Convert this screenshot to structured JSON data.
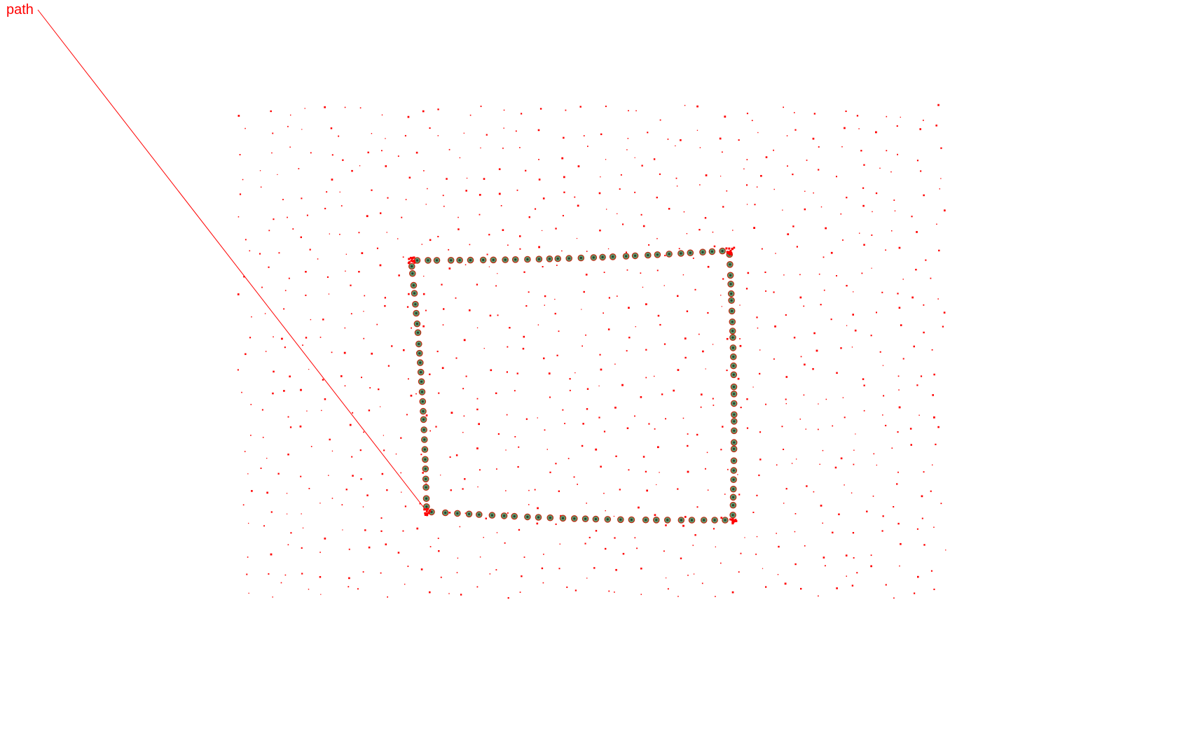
{
  "label": {
    "text": "path"
  },
  "colors": {
    "background": "#ffffff",
    "path_line": "#ff0000",
    "scatter_point": "#ff0000",
    "marker_ring": "#c02a10",
    "marker_fill": "#5a9b6e",
    "marker_dot": "#2c3a2e"
  },
  "scene": {
    "has_leader_line": true,
    "has_background_scatter": true,
    "outline_shape": "quadrilateral",
    "outline_marker_style": "ringed-dot",
    "outline_marker_count": 110,
    "background_point_count": 900
  }
}
